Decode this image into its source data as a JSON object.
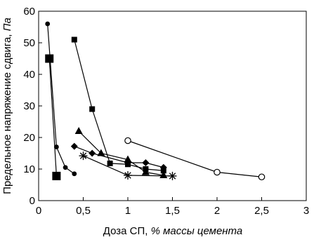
{
  "chart_data": {
    "type": "scatter",
    "xlabel_prefix": "Доза СП, ",
    "xlabel_italic": "% массы цемента",
    "ylabel_prefix": "Предельное напряжение сдвига, ",
    "ylabel_italic": "Па",
    "xlim": [
      0,
      3
    ],
    "ylim": [
      0,
      60
    ],
    "x_ticks": [
      {
        "value": 0,
        "label": "0"
      },
      {
        "value": 0.5,
        "label": "0,5"
      },
      {
        "value": 1,
        "label": "1"
      },
      {
        "value": 1.5,
        "label": "1,5"
      },
      {
        "value": 2,
        "label": "2"
      },
      {
        "value": 2.5,
        "label": "2,5"
      },
      {
        "value": 3,
        "label": "3"
      }
    ],
    "y_ticks": [
      {
        "value": 0,
        "label": "0"
      },
      {
        "value": 10,
        "label": "10"
      },
      {
        "value": 20,
        "label": "20"
      },
      {
        "value": 30,
        "label": "30"
      },
      {
        "value": 40,
        "label": "40"
      },
      {
        "value": 50,
        "label": "50"
      },
      {
        "value": 60,
        "label": "60"
      }
    ],
    "grid": false,
    "series": [
      {
        "marker": "small-dot",
        "points": [
          [
            0.1,
            56
          ],
          [
            0.2,
            17
          ],
          [
            0.3,
            10.5
          ],
          [
            0.4,
            8.5
          ]
        ]
      },
      {
        "marker": "large-square",
        "points": [
          [
            0.12,
            45
          ],
          [
            0.2,
            7.8
          ]
        ]
      },
      {
        "marker": "square",
        "points": [
          [
            0.4,
            51
          ],
          [
            0.6,
            29
          ],
          [
            0.8,
            11.8
          ],
          [
            1.0,
            11.5
          ],
          [
            1.2,
            10
          ],
          [
            1.4,
            9.5
          ]
        ]
      },
      {
        "marker": "triangle",
        "points": [
          [
            0.45,
            22
          ],
          [
            0.7,
            15
          ],
          [
            1.0,
            13
          ],
          [
            1.2,
            9
          ],
          [
            1.4,
            8
          ]
        ]
      },
      {
        "marker": "diamond",
        "points": [
          [
            0.4,
            17.2
          ],
          [
            0.6,
            15
          ],
          [
            1.0,
            12
          ],
          [
            1.2,
            12
          ],
          [
            1.4,
            10.5
          ]
        ]
      },
      {
        "marker": "asterisk",
        "points": [
          [
            0.5,
            14.2
          ],
          [
            1.0,
            8
          ],
          [
            1.5,
            7.8
          ]
        ]
      },
      {
        "marker": "open-circle",
        "points": [
          [
            1.0,
            19
          ],
          [
            2.0,
            9
          ],
          [
            2.5,
            7.5
          ]
        ]
      }
    ]
  }
}
